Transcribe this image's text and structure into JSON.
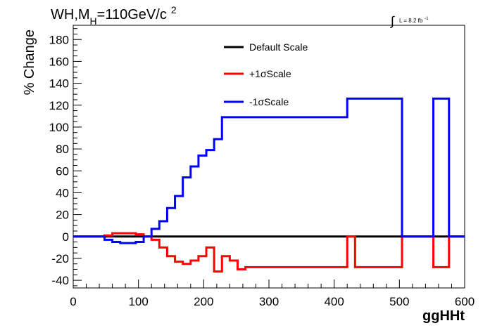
{
  "header": {
    "title_main": "WH,M",
    "title_sub": "H",
    "title_rest": "=110GeV/c",
    "title_sup": "2",
    "lumi_integral": "∫",
    "lumi_text": "L = 8.2 fb",
    "lumi_sup": "-1"
  },
  "chart_data": {
    "type": "line",
    "step": true,
    "title": "WH,M_H=110GeV/c^2",
    "xlabel": "ggHHt",
    "ylabel": "% Change",
    "xlim": [
      0,
      600
    ],
    "ylim": [
      -47,
      193
    ],
    "xticks": [
      0,
      100,
      200,
      300,
      400,
      500,
      600
    ],
    "yticks": [
      -40,
      -20,
      0,
      20,
      40,
      60,
      80,
      100,
      120,
      140,
      160,
      180
    ],
    "legend_position": "top-center",
    "series": [
      {
        "name": "Default Scale",
        "color": "#000000",
        "edges": [
          0,
          600
        ],
        "values": [
          0
        ]
      },
      {
        "name": "+1σScale",
        "color": "#ff0000",
        "edges": [
          0,
          48,
          60,
          96,
          108,
          120,
          132,
          144,
          156,
          168,
          180,
          192,
          204,
          216,
          228,
          240,
          252,
          264,
          420,
          432,
          504,
          552,
          576,
          600
        ],
        "values": [
          0,
          1,
          3,
          2,
          0,
          -3,
          -10,
          -18,
          -23,
          -25,
          -22,
          -18,
          -10,
          -32,
          -18,
          -22,
          -30,
          -28,
          0,
          -28,
          0,
          -28,
          0
        ]
      },
      {
        "name": "-1σScale",
        "color": "#0000ff",
        "edges": [
          0,
          48,
          60,
          72,
          96,
          108,
          120,
          132,
          144,
          156,
          168,
          180,
          192,
          204,
          216,
          228,
          420,
          432,
          504,
          552,
          576,
          600
        ],
        "values": [
          0,
          -3,
          -5,
          -6,
          -5,
          0,
          7,
          14,
          26,
          37,
          54,
          64,
          74,
          79,
          89,
          109,
          126,
          126,
          0,
          126,
          0
        ]
      }
    ]
  }
}
